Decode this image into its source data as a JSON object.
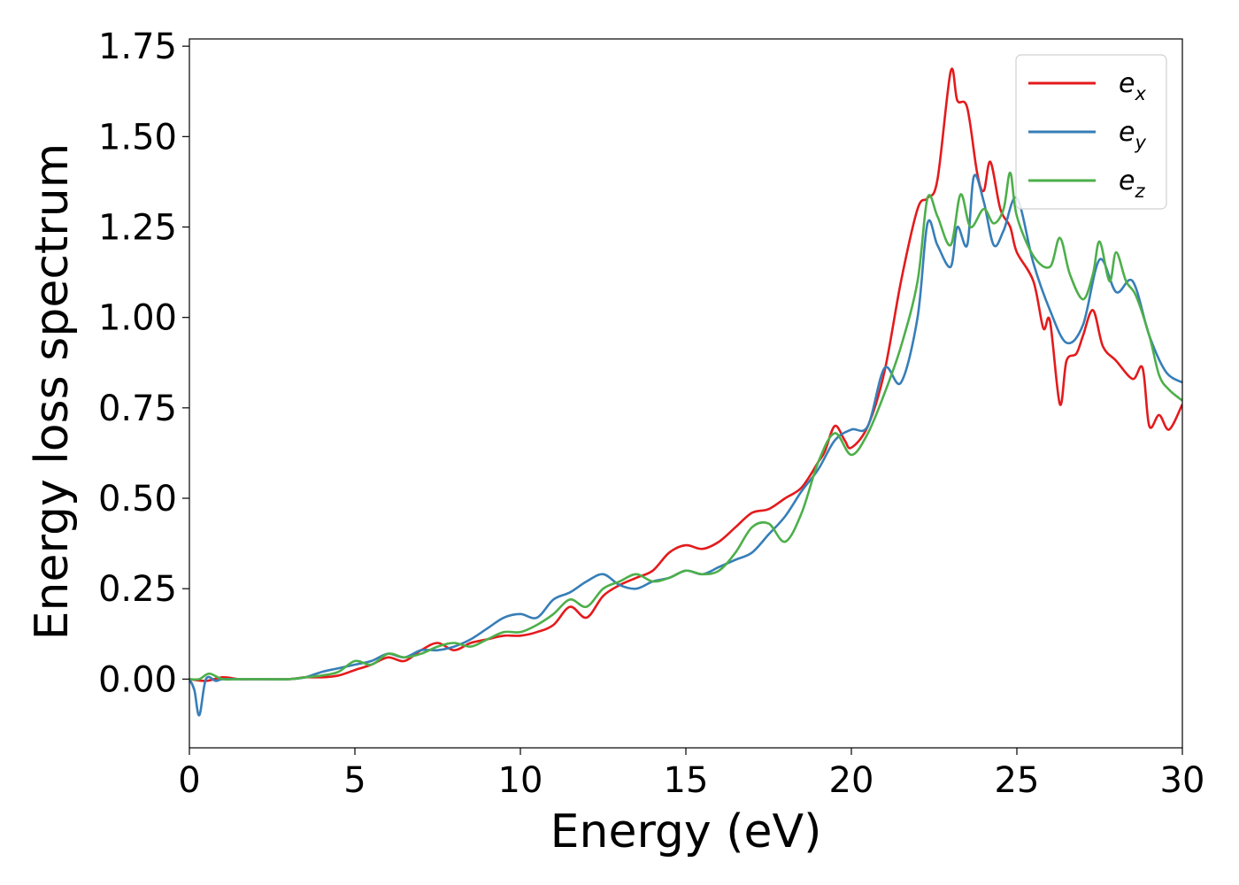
{
  "chart_data": {
    "type": "line",
    "xlabel": "Energy (eV)",
    "ylabel": "Energy loss spectrum",
    "xlim": [
      0,
      30
    ],
    "ylim": [
      -0.19,
      1.77
    ],
    "xticks": [
      "0",
      "5",
      "10",
      "15",
      "20",
      "25",
      "30"
    ],
    "yticks": [
      "0.00",
      "0.25",
      "0.50",
      "0.75",
      "1.00",
      "1.25",
      "1.50",
      "1.75"
    ],
    "grid": false,
    "legend_position": "top-right",
    "series": [
      {
        "name": "e",
        "subscript": "x",
        "color": "#e41a1c",
        "x": [
          0,
          0.5,
          1,
          1.5,
          2,
          3,
          3.5,
          4,
          4.5,
          5,
          5.5,
          6,
          6.5,
          7,
          7.5,
          8,
          8.5,
          9,
          9.5,
          10,
          10.5,
          11,
          11.5,
          12,
          12.5,
          13,
          13.5,
          14,
          14.5,
          15,
          15.5,
          16,
          16.5,
          17,
          17.5,
          18,
          18.5,
          19,
          19.2,
          19.5,
          19.8,
          20,
          20.5,
          21,
          21.5,
          22,
          22.3,
          22.6,
          23,
          23.2,
          23.5,
          23.8,
          24,
          24.2,
          24.5,
          24.8,
          25,
          25.5,
          25.8,
          26,
          26.3,
          26.5,
          26.8,
          27,
          27.3,
          27.6,
          28,
          28.5,
          28.8,
          29,
          29.3,
          29.6,
          30
        ],
        "y": [
          0.0,
          -0.005,
          0.005,
          0.0,
          0.0,
          0.0,
          0.005,
          0.005,
          0.01,
          0.025,
          0.04,
          0.06,
          0.05,
          0.08,
          0.1,
          0.08,
          0.1,
          0.11,
          0.12,
          0.12,
          0.13,
          0.15,
          0.2,
          0.17,
          0.23,
          0.26,
          0.28,
          0.3,
          0.35,
          0.37,
          0.36,
          0.38,
          0.42,
          0.46,
          0.47,
          0.5,
          0.53,
          0.6,
          0.63,
          0.7,
          0.66,
          0.64,
          0.7,
          0.85,
          1.1,
          1.3,
          1.33,
          1.38,
          1.68,
          1.6,
          1.58,
          1.4,
          1.35,
          1.43,
          1.3,
          1.25,
          1.18,
          1.1,
          0.97,
          0.99,
          0.76,
          0.88,
          0.9,
          0.95,
          1.02,
          0.92,
          0.88,
          0.83,
          0.86,
          0.7,
          0.73,
          0.69,
          0.76
        ]
      },
      {
        "name": "e",
        "subscript": "y",
        "color": "#377eb8",
        "x": [
          0,
          0.15,
          0.3,
          0.5,
          0.8,
          1,
          1.5,
          2,
          3,
          3.5,
          4,
          4.5,
          5,
          5.5,
          6,
          6.5,
          7,
          7.5,
          8,
          8.5,
          9,
          9.5,
          10,
          10.5,
          11,
          11.5,
          12,
          12.5,
          13,
          13.5,
          14,
          14.5,
          15,
          15.5,
          16,
          16.5,
          17,
          17.5,
          18,
          18.5,
          19,
          19.5,
          20,
          20.5,
          21,
          21.5,
          22,
          22.3,
          22.6,
          23,
          23.2,
          23.5,
          23.7,
          24,
          24.3,
          24.6,
          25,
          25.5,
          26,
          26.5,
          27,
          27.5,
          28,
          28.5,
          29,
          29.5,
          30
        ],
        "y": [
          0.0,
          -0.03,
          -0.1,
          0.0,
          -0.005,
          0.0,
          0.0,
          0.0,
          0.0,
          0.005,
          0.02,
          0.03,
          0.04,
          0.05,
          0.07,
          0.06,
          0.08,
          0.08,
          0.09,
          0.11,
          0.14,
          0.17,
          0.18,
          0.17,
          0.22,
          0.24,
          0.27,
          0.29,
          0.26,
          0.25,
          0.27,
          0.28,
          0.3,
          0.29,
          0.31,
          0.33,
          0.35,
          0.4,
          0.45,
          0.52,
          0.58,
          0.66,
          0.69,
          0.7,
          0.86,
          0.82,
          1.0,
          1.26,
          1.2,
          1.14,
          1.25,
          1.2,
          1.39,
          1.32,
          1.2,
          1.24,
          1.33,
          1.15,
          1.02,
          0.93,
          0.98,
          1.16,
          1.07,
          1.1,
          0.95,
          0.85,
          0.82
        ]
      },
      {
        "name": "e",
        "subscript": "z",
        "color": "#4daf4a",
        "x": [
          0,
          0.3,
          0.6,
          1,
          1.5,
          2,
          3,
          3.5,
          4,
          4.5,
          5,
          5.5,
          6,
          6.5,
          7,
          7.5,
          8,
          8.5,
          9,
          9.5,
          10,
          10.5,
          11,
          11.5,
          12,
          12.5,
          13,
          13.5,
          14,
          14.5,
          15,
          15.5,
          16,
          16.5,
          17,
          17.5,
          18,
          18.5,
          19,
          19.5,
          20,
          20.5,
          21,
          21.5,
          22,
          22.3,
          22.6,
          23,
          23.3,
          23.6,
          24,
          24.3,
          24.6,
          24.8,
          25,
          25.5,
          26,
          26.3,
          26.6,
          27,
          27.3,
          27.5,
          27.8,
          28,
          28.3,
          28.6,
          29,
          29.3,
          29.6,
          30
        ],
        "y": [
          0.0,
          0.0,
          0.015,
          0.0,
          0.0,
          0.0,
          0.0,
          0.005,
          0.01,
          0.02,
          0.05,
          0.04,
          0.07,
          0.06,
          0.07,
          0.09,
          0.1,
          0.09,
          0.11,
          0.13,
          0.13,
          0.15,
          0.18,
          0.22,
          0.2,
          0.25,
          0.27,
          0.29,
          0.27,
          0.28,
          0.3,
          0.29,
          0.3,
          0.35,
          0.42,
          0.43,
          0.38,
          0.46,
          0.6,
          0.68,
          0.62,
          0.68,
          0.79,
          0.92,
          1.1,
          1.33,
          1.28,
          1.2,
          1.34,
          1.25,
          1.3,
          1.26,
          1.3,
          1.4,
          1.28,
          1.17,
          1.14,
          1.22,
          1.12,
          1.05,
          1.12,
          1.21,
          1.1,
          1.18,
          1.1,
          1.06,
          0.95,
          0.84,
          0.8,
          0.77
        ]
      }
    ]
  }
}
